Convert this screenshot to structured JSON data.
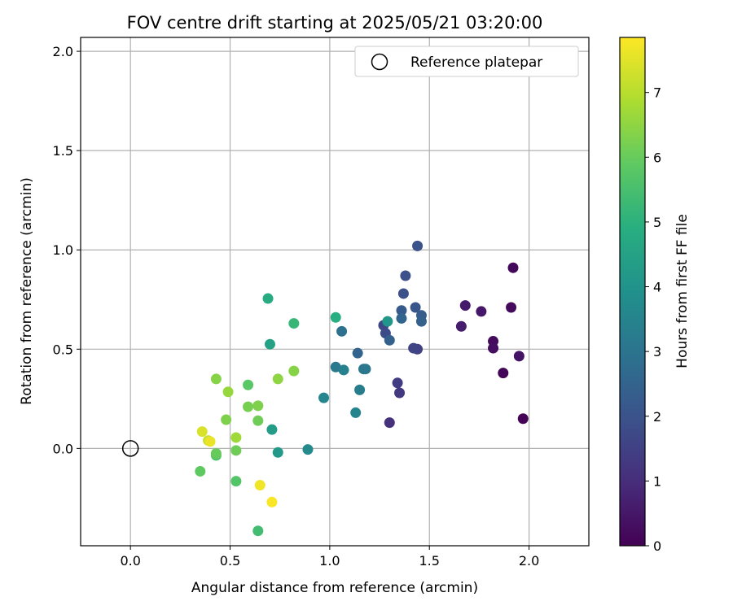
{
  "chart_data": {
    "type": "scatter",
    "title": "FOV centre drift starting at 2025/05/21 03:20:00",
    "xlabel": "Angular distance from reference (arcmin)",
    "ylabel": "Rotation from reference (arcmin)",
    "xlim": [
      -0.25,
      2.3
    ],
    "ylim": [
      -0.49,
      2.07
    ],
    "xticks": [
      0.0,
      0.5,
      1.0,
      1.5,
      2.0
    ],
    "xtick_labels": [
      "0.0",
      "0.5",
      "1.0",
      "1.5",
      "2.0"
    ],
    "yticks": [
      0.0,
      0.5,
      1.0,
      1.5,
      2.0
    ],
    "ytick_labels": [
      "0.0",
      "0.5",
      "1.0",
      "1.5",
      "2.0"
    ],
    "grid": true,
    "legend": {
      "placement": "top-right",
      "entries": [
        {
          "label": "Reference platepar",
          "marker": "open-circle",
          "color": "#000000"
        }
      ]
    },
    "reference_point": {
      "x": 0.0,
      "y": 0.0
    },
    "colorbar": {
      "label": "Hours from first FF file",
      "colormap": "viridis",
      "range": [
        0,
        7.85
      ],
      "ticks": [
        0,
        1,
        2,
        3,
        4,
        5,
        6,
        7
      ],
      "tick_labels": [
        "0",
        "1",
        "2",
        "3",
        "4",
        "5",
        "6",
        "7"
      ]
    },
    "points": [
      {
        "x": 1.97,
        "y": 0.15,
        "t": 0.05
      },
      {
        "x": 1.87,
        "y": 0.38,
        "t": 0.1
      },
      {
        "x": 1.92,
        "y": 0.91,
        "t": 0.15
      },
      {
        "x": 1.91,
        "y": 0.71,
        "t": 0.2
      },
      {
        "x": 1.82,
        "y": 0.54,
        "t": 0.25
      },
      {
        "x": 1.82,
        "y": 0.505,
        "t": 0.3
      },
      {
        "x": 1.95,
        "y": 0.465,
        "t": 0.4
      },
      {
        "x": 1.76,
        "y": 0.69,
        "t": 0.5
      },
      {
        "x": 1.68,
        "y": 0.72,
        "t": 0.55
      },
      {
        "x": 1.66,
        "y": 0.615,
        "t": 0.6
      },
      {
        "x": 1.3,
        "y": 0.13,
        "t": 1.1
      },
      {
        "x": 1.35,
        "y": 0.28,
        "t": 1.3
      },
      {
        "x": 1.34,
        "y": 0.33,
        "t": 1.4
      },
      {
        "x": 1.44,
        "y": 0.5,
        "t": 1.5
      },
      {
        "x": 1.42,
        "y": 0.505,
        "t": 1.6
      },
      {
        "x": 1.27,
        "y": 0.62,
        "t": 1.7
      },
      {
        "x": 1.28,
        "y": 0.58,
        "t": 1.8
      },
      {
        "x": 1.38,
        "y": 0.87,
        "t": 1.9
      },
      {
        "x": 1.37,
        "y": 0.78,
        "t": 1.9
      },
      {
        "x": 1.44,
        "y": 1.02,
        "t": 2.0
      },
      {
        "x": 1.43,
        "y": 0.71,
        "t": 2.1
      },
      {
        "x": 1.36,
        "y": 0.695,
        "t": 2.2
      },
      {
        "x": 1.46,
        "y": 0.67,
        "t": 2.3
      },
      {
        "x": 1.46,
        "y": 0.64,
        "t": 2.4
      },
      {
        "x": 1.3,
        "y": 0.545,
        "t": 2.4
      },
      {
        "x": 1.36,
        "y": 0.655,
        "t": 2.5
      },
      {
        "x": 1.14,
        "y": 0.48,
        "t": 2.5
      },
      {
        "x": 1.06,
        "y": 0.59,
        "t": 2.9
      },
      {
        "x": 1.17,
        "y": 0.4,
        "t": 3.1
      },
      {
        "x": 1.18,
        "y": 0.4,
        "t": 3.1
      },
      {
        "x": 1.03,
        "y": 0.41,
        "t": 3.2
      },
      {
        "x": 1.15,
        "y": 0.295,
        "t": 3.3
      },
      {
        "x": 1.07,
        "y": 0.395,
        "t": 3.4
      },
      {
        "x": 1.13,
        "y": 0.18,
        "t": 3.5
      },
      {
        "x": 0.97,
        "y": 0.255,
        "t": 3.6
      },
      {
        "x": 0.89,
        "y": -0.005,
        "t": 3.7
      },
      {
        "x": 1.29,
        "y": 0.64,
        "t": 4.1
      },
      {
        "x": 0.74,
        "y": -0.02,
        "t": 4.2
      },
      {
        "x": 0.71,
        "y": 0.095,
        "t": 4.3
      },
      {
        "x": 0.7,
        "y": 0.525,
        "t": 4.5
      },
      {
        "x": 0.69,
        "y": 0.755,
        "t": 4.8
      },
      {
        "x": 1.03,
        "y": 0.66,
        "t": 4.9
      },
      {
        "x": 0.82,
        "y": 0.63,
        "t": 5.2
      },
      {
        "x": 0.64,
        "y": -0.415,
        "t": 5.4
      },
      {
        "x": 0.43,
        "y": -0.035,
        "t": 5.6
      },
      {
        "x": 0.53,
        "y": -0.165,
        "t": 5.7
      },
      {
        "x": 0.59,
        "y": 0.32,
        "t": 5.8
      },
      {
        "x": 0.35,
        "y": -0.115,
        "t": 5.9
      },
      {
        "x": 0.43,
        "y": -0.025,
        "t": 6.0
      },
      {
        "x": 0.53,
        "y": -0.01,
        "t": 6.1
      },
      {
        "x": 0.64,
        "y": 0.14,
        "t": 6.1
      },
      {
        "x": 0.59,
        "y": 0.21,
        "t": 6.2
      },
      {
        "x": 0.64,
        "y": 0.215,
        "t": 6.3
      },
      {
        "x": 0.48,
        "y": 0.145,
        "t": 6.3
      },
      {
        "x": 0.43,
        "y": 0.35,
        "t": 6.4
      },
      {
        "x": 0.82,
        "y": 0.39,
        "t": 6.4
      },
      {
        "x": 0.74,
        "y": 0.35,
        "t": 6.5
      },
      {
        "x": 0.49,
        "y": 0.285,
        "t": 6.6
      },
      {
        "x": 0.53,
        "y": 0.055,
        "t": 6.7
      },
      {
        "x": 0.39,
        "y": 0.04,
        "t": 7.2
      },
      {
        "x": 0.36,
        "y": 0.085,
        "t": 7.4
      },
      {
        "x": 0.4,
        "y": 0.035,
        "t": 7.6
      },
      {
        "x": 0.65,
        "y": -0.185,
        "t": 7.7
      },
      {
        "x": 0.71,
        "y": -0.27,
        "t": 7.8
      }
    ]
  }
}
